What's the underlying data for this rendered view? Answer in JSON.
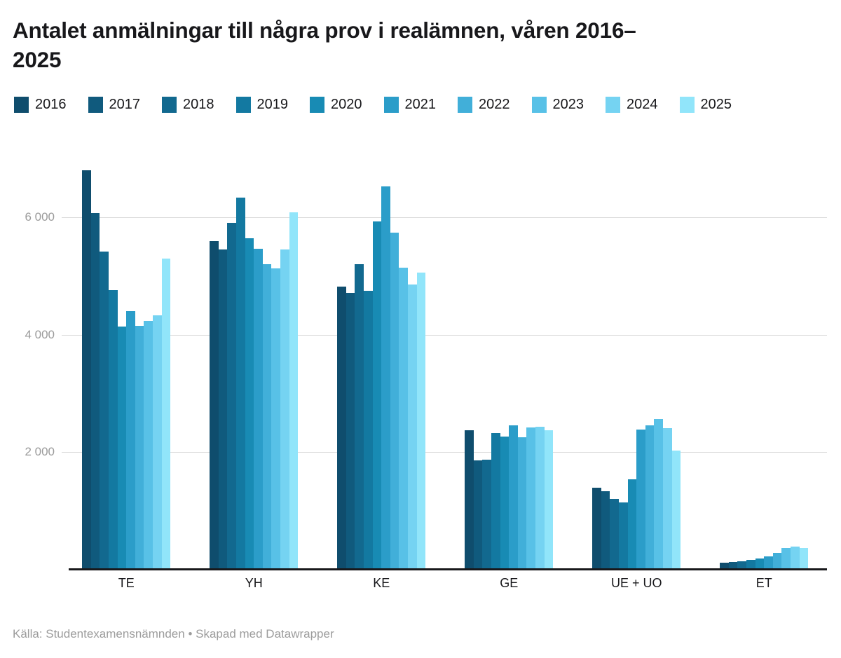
{
  "title": {
    "line1": "Antalet anmälningar till några prov i realämnen, våren 2016–",
    "line2": "2025",
    "full": "Antalet anmälningar till några prov i realämnen, våren 2016–2025"
  },
  "footer": {
    "source": "Källa: Studentexamensnämnden • Skapad med Datawrapper"
  },
  "chart_data": {
    "type": "bar",
    "title": "Antalet anmälningar till några prov i realämnen, våren 2016–2025",
    "xlabel": "",
    "ylabel": "",
    "grid": true,
    "legend_position": "top",
    "ylim": [
      0,
      7000
    ],
    "yticks": [
      {
        "value": 2000,
        "label": "2 000"
      },
      {
        "value": 4000,
        "label": "4 000"
      },
      {
        "value": 6000,
        "label": "6 000"
      }
    ],
    "categories": [
      "TE",
      "YH",
      "KE",
      "GE",
      "UE + UO",
      "ET"
    ],
    "series": [
      {
        "name": "2016",
        "color": "#0f4d6d",
        "values": [
          6800,
          5590,
          4810,
          2360,
          1390,
          110
        ]
      },
      {
        "name": "2017",
        "color": "#105a7d",
        "values": [
          6070,
          5440,
          4700,
          1850,
          1330,
          120
        ]
      },
      {
        "name": "2018",
        "color": "#12698f",
        "values": [
          5410,
          5900,
          5190,
          1860,
          1190,
          130
        ]
      },
      {
        "name": "2019",
        "color": "#1379a1",
        "values": [
          4750,
          6330,
          4740,
          2320,
          1140,
          150
        ]
      },
      {
        "name": "2020",
        "color": "#188bb4",
        "values": [
          4130,
          5640,
          5920,
          2260,
          1530,
          180
        ]
      },
      {
        "name": "2021",
        "color": "#2b9dc9",
        "values": [
          4400,
          5460,
          6520,
          2450,
          2380,
          220
        ]
      },
      {
        "name": "2022",
        "color": "#41afd9",
        "values": [
          4140,
          5200,
          5730,
          2240,
          2450,
          280
        ]
      },
      {
        "name": "2023",
        "color": "#58c1e7",
        "values": [
          4230,
          5120,
          5140,
          2410,
          2560,
          360
        ]
      },
      {
        "name": "2024",
        "color": "#75d3f2",
        "values": [
          4320,
          5440,
          4850,
          2420,
          2400,
          380
        ]
      },
      {
        "name": "2025",
        "color": "#91e5fa",
        "values": [
          5290,
          6080,
          5050,
          2360,
          2020,
          360
        ]
      }
    ]
  }
}
